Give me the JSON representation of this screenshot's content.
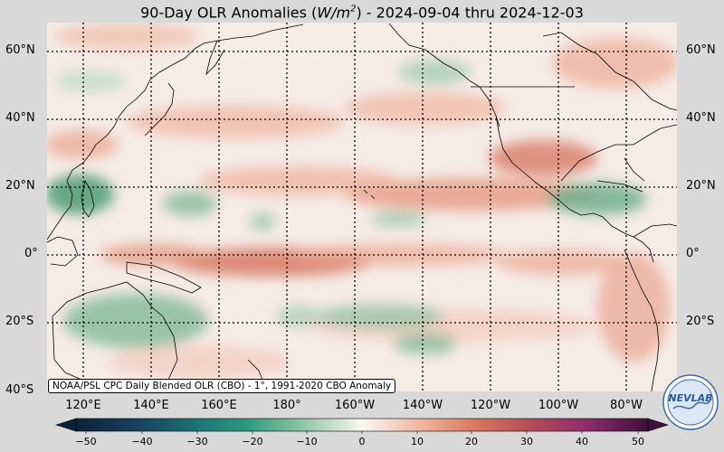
{
  "title": {
    "prefix": "90-Day OLR Anomalies (",
    "unit_main": "W/m",
    "unit_exp": "2",
    "suffix": ") - 2024-09-04 thru 2024-12-03"
  },
  "lat_labels_left": [
    "60°N",
    "40°N",
    "20°N",
    "0°",
    "20°S",
    "40°S"
  ],
  "lat_labels_right": [
    "60°N",
    "40°N",
    "20°N",
    "0°",
    "20°S"
  ],
  "lon_labels": [
    "120°E",
    "140°E",
    "160°E",
    "180°",
    "160°W",
    "140°W",
    "120°W",
    "100°W",
    "80°W"
  ],
  "colorbar_ticks": [
    "−50",
    "−40",
    "−30",
    "−20",
    "−10",
    "0",
    "10",
    "20",
    "30",
    "40",
    "50"
  ],
  "credit": "NOAA/PSL CPC Daily Blended OLR (CBO) - 1°, 1991-2020 CBO Anomaly",
  "logo_text": "NEVLAB",
  "map_data": {
    "extent": {
      "lon_min": 105,
      "lon_max": 290,
      "lat_min": -40,
      "lat_max": 68
    },
    "units": "W/m2",
    "scale": {
      "min": -50,
      "max": 50,
      "center": 0
    },
    "colors": {
      "negative": "#2e8b57",
      "positive": "#d6604d",
      "neutral": "#f7f4f0"
    }
  }
}
